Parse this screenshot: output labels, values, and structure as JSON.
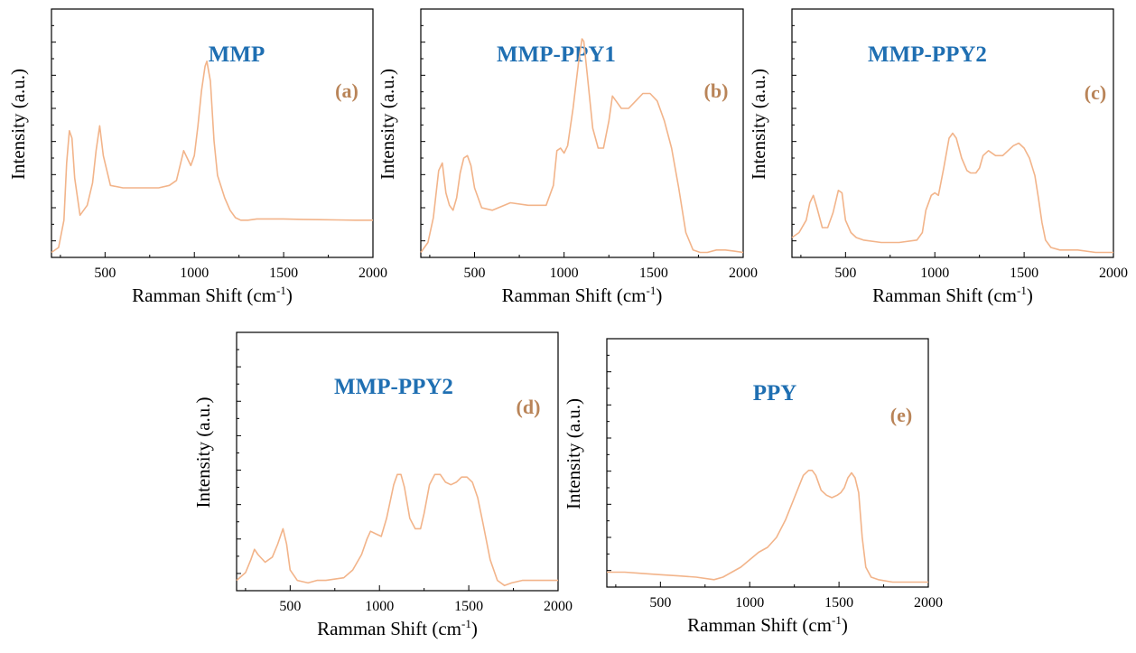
{
  "chart_data": [
    {
      "type": "line",
      "title": "MMP",
      "panel_label": "(a)",
      "xlabel": "Ramman Shift (cm",
      "xlabel_sup": "-1",
      "xlabel_end": ")",
      "ylabel": "Intensity (a.u.)",
      "xlim": [
        200,
        2000
      ],
      "ylim": [
        0,
        1
      ],
      "x_ticks": [
        500,
        1000,
        1500,
        2000
      ],
      "color": "#f2b48a",
      "series": [
        {
          "x": [
            200,
            240,
            270,
            285,
            300,
            315,
            330,
            360,
            400,
            430,
            450,
            470,
            490,
            530,
            600,
            700,
            800,
            860,
            900,
            920,
            940,
            960,
            980,
            1000,
            1020,
            1040,
            1060,
            1070,
            1090,
            1110,
            1130,
            1170,
            1200,
            1230,
            1260,
            1300,
            1350,
            1400,
            1500,
            1600,
            1700,
            1800,
            1900,
            2000
          ],
          "y": [
            0.02,
            0.04,
            0.15,
            0.38,
            0.51,
            0.48,
            0.32,
            0.17,
            0.21,
            0.3,
            0.43,
            0.53,
            0.41,
            0.29,
            0.28,
            0.28,
            0.28,
            0.29,
            0.31,
            0.37,
            0.43,
            0.4,
            0.37,
            0.41,
            0.53,
            0.67,
            0.77,
            0.79,
            0.71,
            0.47,
            0.33,
            0.24,
            0.19,
            0.16,
            0.15,
            0.15,
            0.155,
            0.155,
            0.155,
            0.153,
            0.152,
            0.151,
            0.15,
            0.15
          ]
        }
      ]
    },
    {
      "type": "line",
      "title": "MMP-PPY1",
      "panel_label": "(b)",
      "xlabel": "Ramman Shift (cm",
      "xlabel_sup": "-1",
      "xlabel_end": ")",
      "ylabel": "Intensity (a.u.)",
      "xlim": [
        200,
        2000
      ],
      "ylim": [
        0,
        1
      ],
      "x_ticks": [
        500,
        1000,
        1500,
        2000
      ],
      "color": "#f2b48a",
      "series": [
        {
          "x": [
            200,
            240,
            270,
            300,
            320,
            340,
            360,
            380,
            400,
            420,
            440,
            460,
            480,
            500,
            540,
            600,
            700,
            800,
            900,
            940,
            960,
            980,
            1000,
            1020,
            1050,
            1080,
            1100,
            1110,
            1130,
            1160,
            1190,
            1220,
            1250,
            1270,
            1290,
            1320,
            1360,
            1400,
            1440,
            1480,
            1520,
            1560,
            1600,
            1640,
            1680,
            1720,
            1760,
            1800,
            1850,
            1900,
            1950,
            2000
          ],
          "y": [
            0.02,
            0.06,
            0.16,
            0.35,
            0.38,
            0.26,
            0.21,
            0.19,
            0.24,
            0.34,
            0.4,
            0.41,
            0.37,
            0.28,
            0.2,
            0.19,
            0.22,
            0.21,
            0.21,
            0.29,
            0.43,
            0.44,
            0.42,
            0.45,
            0.6,
            0.78,
            0.88,
            0.87,
            0.73,
            0.52,
            0.44,
            0.44,
            0.55,
            0.65,
            0.63,
            0.6,
            0.6,
            0.63,
            0.66,
            0.66,
            0.63,
            0.55,
            0.44,
            0.28,
            0.1,
            0.03,
            0.02,
            0.02,
            0.03,
            0.03,
            0.025,
            0.02
          ]
        }
      ]
    },
    {
      "type": "line",
      "title": "MMP-PPY2",
      "panel_label": "(c)",
      "xlabel": "Ramman Shift (cm",
      "xlabel_sup": "-1",
      "xlabel_end": ")",
      "ylabel": "Intensity (a.u.)",
      "xlim": [
        200,
        2000
      ],
      "ylim": [
        0,
        1
      ],
      "x_ticks": [
        500,
        1000,
        1500,
        2000
      ],
      "color": "#f2b48a",
      "series": [
        {
          "x": [
            200,
            240,
            280,
            300,
            320,
            340,
            370,
            400,
            430,
            460,
            480,
            500,
            530,
            560,
            600,
            700,
            800,
            900,
            930,
            950,
            980,
            1000,
            1020,
            1050,
            1080,
            1100,
            1120,
            1150,
            1180,
            1200,
            1230,
            1250,
            1270,
            1300,
            1340,
            1380,
            1410,
            1440,
            1470,
            1500,
            1530,
            1560,
            1580,
            1600,
            1620,
            1650,
            1700,
            1800,
            1900,
            2000
          ],
          "y": [
            0.08,
            0.1,
            0.15,
            0.22,
            0.25,
            0.2,
            0.12,
            0.12,
            0.18,
            0.27,
            0.26,
            0.15,
            0.1,
            0.08,
            0.07,
            0.06,
            0.06,
            0.07,
            0.1,
            0.19,
            0.25,
            0.26,
            0.25,
            0.36,
            0.48,
            0.5,
            0.48,
            0.4,
            0.35,
            0.34,
            0.34,
            0.36,
            0.41,
            0.43,
            0.41,
            0.41,
            0.43,
            0.45,
            0.46,
            0.44,
            0.4,
            0.33,
            0.24,
            0.14,
            0.07,
            0.04,
            0.03,
            0.03,
            0.02,
            0.02
          ]
        }
      ]
    },
    {
      "type": "line",
      "title": "MMP-PPY2",
      "panel_label": "(d)",
      "xlabel": "Ramman Shift (cm",
      "xlabel_sup": "-1",
      "xlabel_end": ")",
      "ylabel": "Intensity (a.u.)",
      "xlim": [
        200,
        2000
      ],
      "ylim": [
        0,
        1
      ],
      "x_ticks": [
        500,
        1000,
        1500,
        2000
      ],
      "color": "#f2b48a",
      "series": [
        {
          "x": [
            200,
            250,
            280,
            300,
            320,
            360,
            400,
            430,
            450,
            460,
            480,
            500,
            540,
            600,
            650,
            700,
            800,
            850,
            900,
            930,
            950,
            980,
            1010,
            1040,
            1080,
            1100,
            1120,
            1140,
            1170,
            1200,
            1230,
            1250,
            1280,
            1310,
            1340,
            1370,
            1400,
            1430,
            1460,
            1490,
            1520,
            1550,
            1580,
            1620,
            1660,
            1700,
            1740,
            1800,
            1900,
            2000
          ],
          "y": [
            0.04,
            0.07,
            0.12,
            0.16,
            0.14,
            0.11,
            0.13,
            0.18,
            0.22,
            0.24,
            0.18,
            0.08,
            0.04,
            0.03,
            0.04,
            0.04,
            0.05,
            0.08,
            0.14,
            0.2,
            0.23,
            0.22,
            0.21,
            0.28,
            0.41,
            0.45,
            0.45,
            0.4,
            0.28,
            0.24,
            0.24,
            0.3,
            0.41,
            0.45,
            0.45,
            0.42,
            0.41,
            0.42,
            0.44,
            0.44,
            0.42,
            0.36,
            0.26,
            0.12,
            0.04,
            0.02,
            0.03,
            0.04,
            0.04,
            0.04
          ]
        }
      ]
    },
    {
      "type": "line",
      "title": "PPY",
      "panel_label": "(e)",
      "xlabel": "Ramman Shift (cm",
      "xlabel_sup": "-1",
      "xlabel_end": ")",
      "ylabel": "Intensity (a.u.)",
      "xlim": [
        200,
        2000
      ],
      "ylim": [
        0,
        1
      ],
      "x_ticks": [
        500,
        1000,
        1500,
        2000
      ],
      "color": "#f2b48a",
      "series": [
        {
          "x": [
            200,
            300,
            400,
            500,
            600,
            700,
            800,
            850,
            900,
            950,
            1000,
            1050,
            1100,
            1150,
            1200,
            1250,
            1300,
            1330,
            1350,
            1370,
            1400,
            1430,
            1460,
            1490,
            1510,
            1530,
            1550,
            1570,
            1590,
            1610,
            1630,
            1650,
            1680,
            1720,
            1800,
            1900,
            2000
          ],
          "y": [
            0.06,
            0.06,
            0.055,
            0.05,
            0.045,
            0.04,
            0.03,
            0.04,
            0.06,
            0.08,
            0.11,
            0.14,
            0.16,
            0.2,
            0.27,
            0.36,
            0.45,
            0.47,
            0.47,
            0.45,
            0.39,
            0.37,
            0.36,
            0.37,
            0.38,
            0.4,
            0.44,
            0.46,
            0.44,
            0.38,
            0.2,
            0.08,
            0.04,
            0.03,
            0.02,
            0.02,
            0.02
          ]
        }
      ]
    }
  ]
}
